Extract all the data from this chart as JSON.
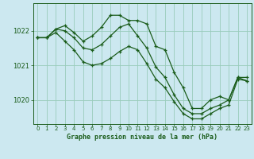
{
  "title": "Graphe pression niveau de la mer (hPa)",
  "bg_color": "#cce8f0",
  "grid_color": "#99ccbb",
  "line_color": "#1a5c1a",
  "xlim": [
    -0.5,
    23.5
  ],
  "ylim": [
    1019.3,
    1022.8
  ],
  "yticks": [
    1020,
    1021,
    1022
  ],
  "xticks": [
    0,
    1,
    2,
    3,
    4,
    5,
    6,
    7,
    8,
    9,
    10,
    11,
    12,
    13,
    14,
    15,
    16,
    17,
    18,
    19,
    20,
    21,
    22,
    23
  ],
  "series": [
    [
      1021.8,
      1021.8,
      1022.05,
      1022.15,
      1021.95,
      1021.7,
      1021.85,
      1022.1,
      1022.45,
      1022.45,
      1022.3,
      1022.3,
      1022.2,
      1021.55,
      1021.45,
      1020.8,
      1020.35,
      1019.75,
      1019.75,
      1020.0,
      1020.1,
      1020.0,
      1020.65,
      1020.65
    ],
    [
      1021.8,
      1021.8,
      1022.05,
      1022.0,
      1021.8,
      1021.5,
      1021.45,
      1021.6,
      1021.85,
      1022.1,
      1022.2,
      1021.85,
      1021.5,
      1020.95,
      1020.65,
      1020.15,
      1019.75,
      1019.6,
      1019.6,
      1019.75,
      1019.85,
      1020.0,
      1020.65,
      1020.55
    ],
    [
      1021.8,
      1021.8,
      1021.95,
      1021.7,
      1021.45,
      1021.1,
      1021.0,
      1021.05,
      1021.2,
      1021.4,
      1021.55,
      1021.45,
      1021.05,
      1020.6,
      1020.35,
      1019.95,
      1019.6,
      1019.45,
      1019.45,
      1019.6,
      1019.75,
      1019.85,
      1020.6,
      1020.55
    ]
  ]
}
